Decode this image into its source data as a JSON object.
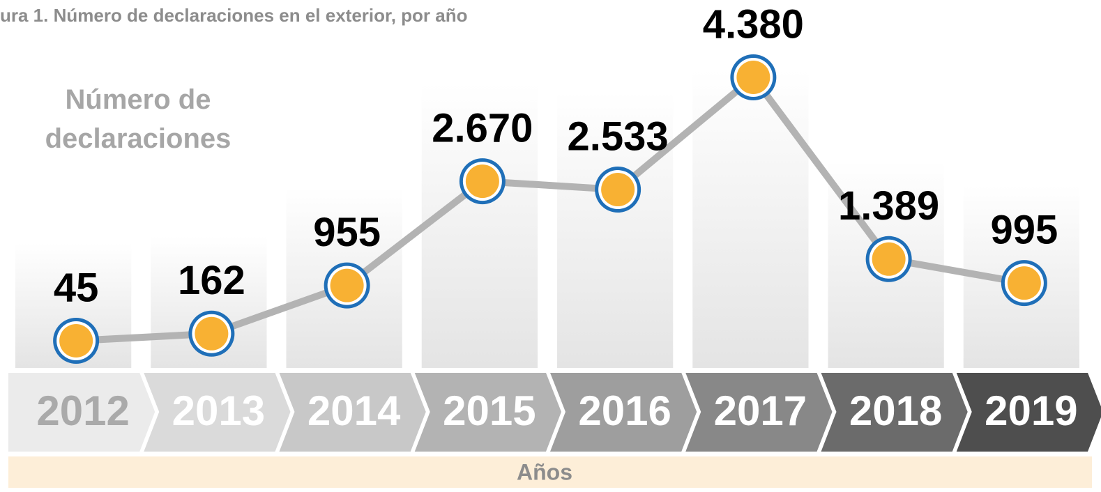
{
  "chart_data": {
    "type": "line",
    "title": "ura 1. Número de declaraciones en el exterior, por año",
    "y_label": "Número de declaraciones",
    "x_label": "Años",
    "categories": [
      "2012",
      "2013",
      "2014",
      "2015",
      "2016",
      "2017",
      "2018",
      "2019"
    ],
    "values": [
      45,
      162,
      955,
      2670,
      2533,
      4380,
      1389,
      995
    ],
    "value_labels": [
      "45",
      "162",
      "955",
      "2.670",
      "2.533",
      "4.380",
      "1.389",
      "995"
    ],
    "color": "#f8b133",
    "marker_edge_color": "#1f6fb8",
    "line_color": "#b3b3b3"
  }
}
